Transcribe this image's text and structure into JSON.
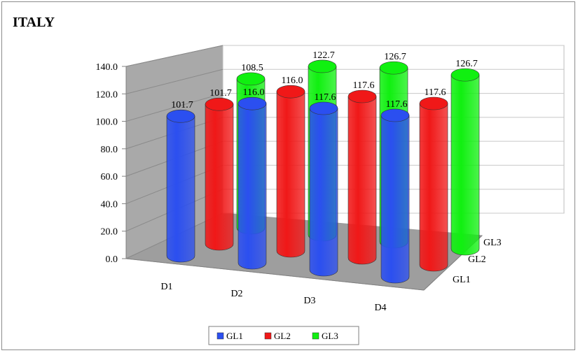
{
  "chart_data": {
    "type": "bar",
    "title": "ITALY",
    "categories": [
      "D1",
      "D2",
      "D3",
      "D4"
    ],
    "series": [
      {
        "name": "GL1",
        "values": [
          101.7,
          116.0,
          117.6,
          117.6
        ],
        "labels": [
          "101.7",
          "116.0",
          "117.6",
          "117.6"
        ],
        "color": "#2b4ff0"
      },
      {
        "name": "GL2",
        "values": [
          101.7,
          116.0,
          117.6,
          117.6
        ],
        "labels": [
          "101.7",
          "116.0",
          "117.6",
          "117.6"
        ],
        "color": "#f01818"
      },
      {
        "name": "GL3",
        "values": [
          108.5,
          122.7,
          126.7,
          126.7
        ],
        "labels": [
          "108.5",
          "122.7",
          "126.7",
          "126.7"
        ],
        "color": "#10f010"
      }
    ],
    "yticks": [
      "0.0",
      "20.0",
      "40.0",
      "60.0",
      "80.0",
      "100.0",
      "120.0",
      "140.0"
    ],
    "ylim": [
      0,
      140
    ],
    "depth_labels": [
      "GL1",
      "GL2",
      "GL3"
    ],
    "grid": true,
    "legend": "bottom",
    "style": "3d-cylinder"
  }
}
